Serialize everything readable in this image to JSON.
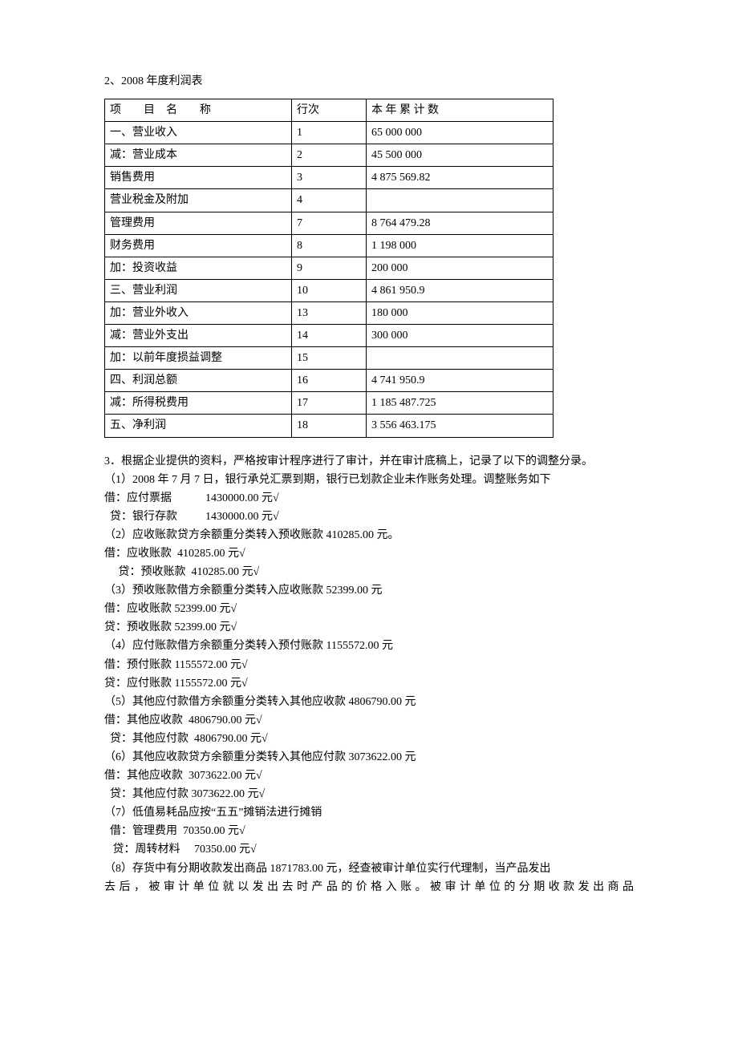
{
  "title": "2、2008 年度利润表",
  "table": {
    "header": {
      "c1": "项　　目　名　　称",
      "c2": "行次",
      "c3": "本 年 累 计 数"
    },
    "rows": [
      {
        "c1": "一、营业收入",
        "c2": "1",
        "c3": "65 000 000"
      },
      {
        "c1": "减：营业成本",
        "c2": "2",
        "c3": "45 500 000"
      },
      {
        "c1": "销售费用",
        "c2": "3",
        "c3": "4 875 569.82"
      },
      {
        "c1": "营业税金及附加",
        "c2": "4",
        "c3": ""
      },
      {
        "c1": "管理费用",
        "c2": "7",
        "c3": "8 764 479.28"
      },
      {
        "c1": "财务费用",
        "c2": "8",
        "c3": "1 198 000"
      },
      {
        "c1": "加：投资收益",
        "c2": "9",
        "c3": "200 000"
      },
      {
        "c1": "三、营业利润",
        "c2": "10",
        "c3": "4 861 950.9"
      },
      {
        "c1": "加：营业外收入",
        "c2": "13",
        "c3": "180 000"
      },
      {
        "c1": "减：营业外支出",
        "c2": "14",
        "c3": "300 000"
      },
      {
        "c1": "加：以前年度损益调整",
        "c2": "15",
        "c3": ""
      },
      {
        "c1": "四、利润总额",
        "c2": "16",
        "c3": "4 741 950.9"
      },
      {
        "c1": "减：所得税费用",
        "c2": "17",
        "c3": "1 185 487.725"
      },
      {
        "c1": "五、净利润",
        "c2": "18",
        "c3": "3 556 463.175"
      }
    ]
  },
  "body": {
    "p3": "3．根据企业提供的资料，严格按审计程序进行了审计，并在审计底稿上，记录了以下的调整分录。",
    "l1": "（1）2008 年 7 月 7 日，银行承兑汇票到期，银行已划款企业未作账务处理。调整账务如下",
    "l1a": "借：应付票据            1430000.00 元√",
    "l1b": "  贷：银行存款          1430000.00 元√",
    "l2": "（2）应收账款贷方余额重分类转入预收账款 410285.00 元。",
    "l2a": "借：应收账款  410285.00 元√",
    "l2b": "     贷：预收账款  410285.00 元√",
    "l3": "（3）预收账款借方余额重分类转入应收账款 52399.00 元",
    "l3a": "借：应收账款 52399.00 元√",
    "l3b": "贷：预收账款 52399.00 元√",
    "l4": "（4）应付账款借方余额重分类转入预付账款 1155572.00 元",
    "l4a": "借：预付账款 1155572.00 元√",
    "l4b": "贷：应付账款 1155572.00 元√",
    "l5": "（5）其他应付款借方余额重分类转入其他应收款 4806790.00 元",
    "l5a": "借：其他应收款  4806790.00 元√",
    "l5b": "  贷：其他应付款  4806790.00 元√",
    "l6": "（6）其他应收款贷方余额重分类转入其他应付款 3073622.00 元",
    "l6a": "借：其他应收款  3073622.00 元√",
    "l6b": "  贷：其他应付款 3073622.00 元√",
    "l7": "（7）低值易耗品应按“五五”摊销法进行摊销",
    "l7a": "  借：管理费用  70350.00 元√",
    "l7b": "   贷：周转材料     70350.00 元√",
    "l8a": "（8）存货中有分期收款发出商品 1871783.00 元，经查被审计单位实行代理制，当产品发出",
    "l8b": "去后，被审计单位就以发出去时产品的价格入账。被审计单位的分期收款发出商品"
  }
}
